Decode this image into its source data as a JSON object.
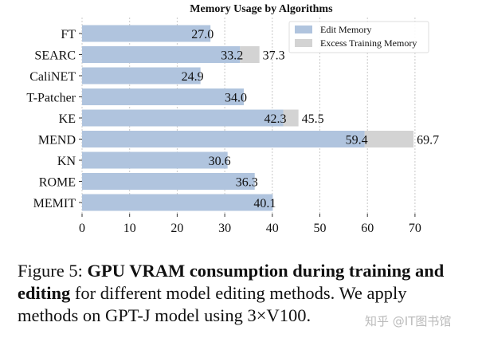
{
  "chart_data": {
    "type": "bar",
    "orientation": "horizontal",
    "stacked": true,
    "title": "Memory Usage by Algorithms",
    "categories": [
      "FT",
      "SEARC",
      "CaliNET",
      "T-Patcher",
      "KE",
      "MEND",
      "KN",
      "ROME",
      "MEMIT"
    ],
    "series": [
      {
        "name": "Edit Memory",
        "color": "#b0c4de",
        "values": [
          27.0,
          33.2,
          24.9,
          34.0,
          42.3,
          59.4,
          30.6,
          36.3,
          40.1
        ]
      },
      {
        "name": "Excess Training Memory",
        "color": "#d3d3d3",
        "totals": [
          null,
          37.3,
          null,
          null,
          45.5,
          69.7,
          null,
          null,
          null
        ]
      }
    ],
    "xlim": [
      0,
      72
    ],
    "xticks": [
      0,
      10,
      20,
      30,
      40,
      50,
      60,
      70
    ],
    "grid": "vertical dotted",
    "legend_position": "top-right"
  },
  "caption": {
    "prefix": "Figure 5: ",
    "bold": "GPU VRAM consumption during training and editing",
    "rest": " for different model editing methods.  We apply methods on GPT-J model using 3×V100."
  },
  "watermark": "知乎 @IT图书馆"
}
